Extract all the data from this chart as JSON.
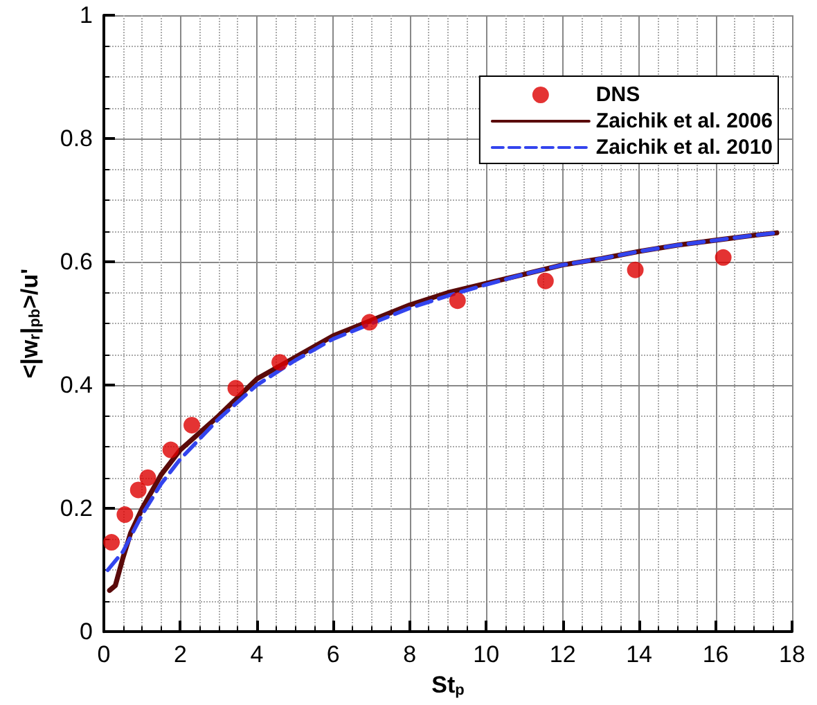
{
  "chart_data": {
    "type": "line",
    "xlabel": "St$_{p}$",
    "ylabel": "<|w$_{r}$|$_{pb}$>/u'",
    "xlim": [
      0,
      18
    ],
    "xticks": [
      0,
      2,
      4,
      6,
      8,
      10,
      12,
      14,
      16,
      18
    ],
    "ylim": [
      0,
      1
    ],
    "yticks": [
      0,
      0.2,
      0.4,
      0.6,
      0.8,
      1
    ],
    "grid": true,
    "legend": "top right",
    "series": [
      {
        "name": "DNS",
        "type": "scatter",
        "marker": "circle",
        "color": "#dd0000",
        "x": [
          0.2,
          0.55,
          0.9,
          1.15,
          1.75,
          2.3,
          3.45,
          4.6,
          6.95,
          9.25,
          11.55,
          13.9,
          16.2
        ],
        "values": [
          0.145,
          0.19,
          0.23,
          0.25,
          0.295,
          0.335,
          0.395,
          0.437,
          0.502,
          0.537,
          0.569,
          0.587,
          0.607
        ]
      },
      {
        "name": "Zaichik et al. 2006",
        "type": "line",
        "line_style": "solid",
        "marker": "none",
        "color": "#5a0a0a",
        "x": [
          0.15,
          0.3,
          0.5,
          0.7,
          1,
          1.5,
          2,
          3,
          4,
          5,
          6,
          7,
          8,
          9,
          10,
          11,
          12,
          13,
          14,
          15,
          16,
          17,
          17.6
        ],
        "values": [
          0.067,
          0.075,
          0.12,
          0.16,
          0.2,
          0.255,
          0.295,
          0.35,
          0.41,
          0.445,
          0.48,
          0.505,
          0.53,
          0.55,
          0.565,
          0.58,
          0.595,
          0.605,
          0.617,
          0.627,
          0.635,
          0.643,
          0.647
        ]
      },
      {
        "name": "Zaichik et al. 2010",
        "type": "line",
        "line_style": "dashed",
        "marker": "none",
        "color": "#3344ee",
        "x": [
          0.1,
          0.5,
          1,
          1.5,
          2,
          3,
          4,
          5,
          6,
          7,
          8,
          9,
          10,
          11,
          12,
          13,
          14,
          15,
          16,
          17,
          17.6
        ],
        "values": [
          0.1,
          0.13,
          0.19,
          0.24,
          0.28,
          0.345,
          0.4,
          0.44,
          0.475,
          0.5,
          0.525,
          0.545,
          0.563,
          0.58,
          0.595,
          0.605,
          0.617,
          0.627,
          0.635,
          0.643,
          0.647
        ]
      }
    ]
  }
}
